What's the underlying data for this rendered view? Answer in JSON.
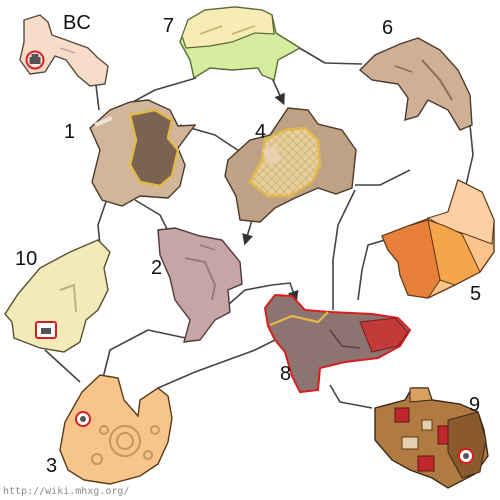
{
  "map": {
    "zones": [
      {
        "id": "bc",
        "label": "BC"
      },
      {
        "id": "1",
        "label": "1"
      },
      {
        "id": "2",
        "label": "2"
      },
      {
        "id": "3",
        "label": "3"
      },
      {
        "id": "4",
        "label": "4"
      },
      {
        "id": "5",
        "label": "5"
      },
      {
        "id": "6",
        "label": "6"
      },
      {
        "id": "7",
        "label": "7"
      },
      {
        "id": "8",
        "label": "8"
      },
      {
        "id": "9",
        "label": "9"
      },
      {
        "id": "10",
        "label": "10"
      }
    ],
    "watermark": "http://wiki.mhxg.org/",
    "colors": {
      "path": "#444444",
      "outline": "#333333",
      "marker_red": "#d81e1e"
    }
  }
}
